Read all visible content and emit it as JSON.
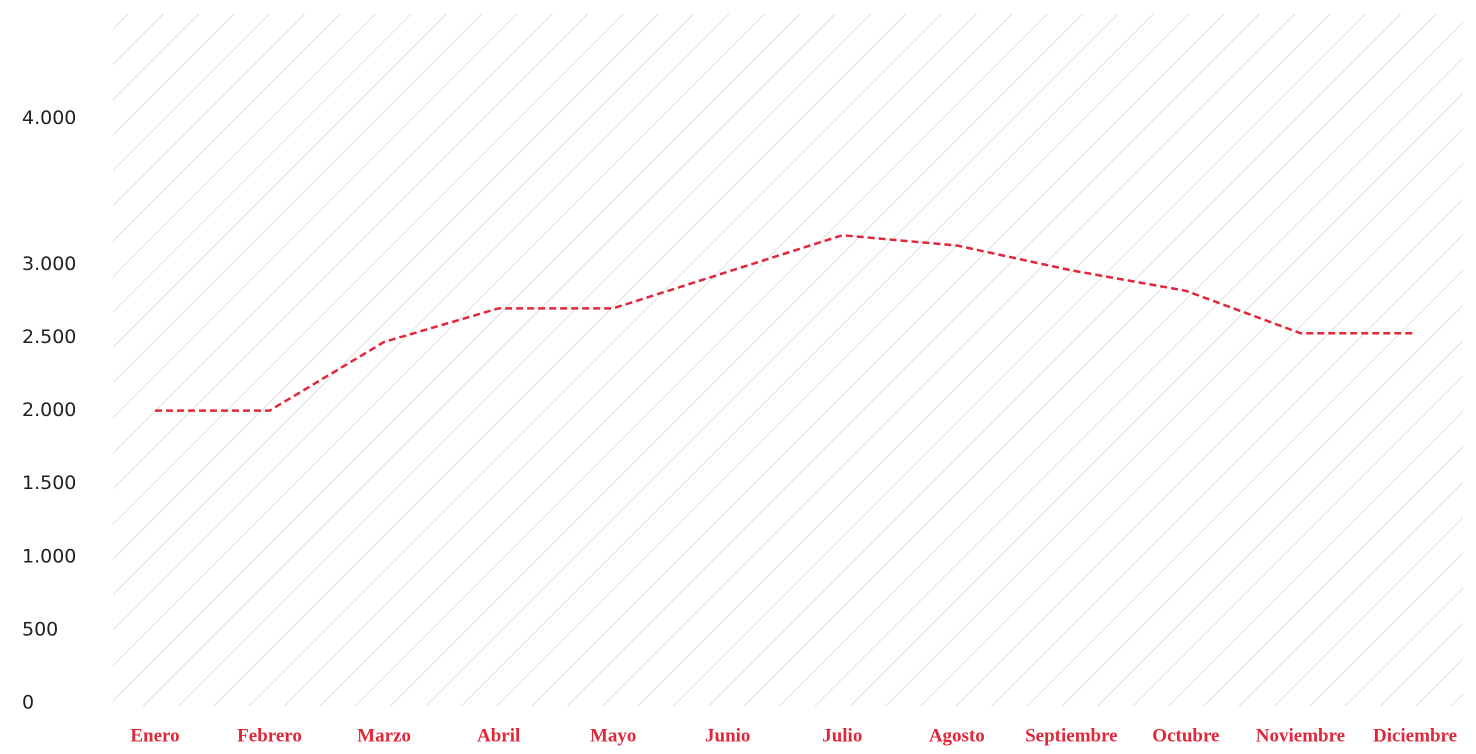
{
  "chart_data": {
    "type": "line",
    "categories": [
      "Enero",
      "Febrero",
      "Marzo",
      "Abril",
      "Mayo",
      "Junio",
      "Julio",
      "Agosto",
      "Septiembre",
      "Octubre",
      "Noviembre",
      "Diciembre"
    ],
    "series": [
      {
        "color": "#e0283a",
        "values": [
          2000,
          2000,
          2470,
          2700,
          2700,
          2950,
          3200,
          3130,
          2960,
          2820,
          2530,
          2530
        ]
      }
    ],
    "ylim": [
      0,
      4700
    ],
    "yticks": [
      0,
      500,
      {
        "value": 1000,
        "label": "1.000"
      },
      {
        "value": 1500,
        "label": "1.500"
      },
      {
        "value": 2000,
        "label": "2.000"
      },
      {
        "value": 2500,
        "label": "2.500"
      },
      {
        "value": 3000,
        "label": "3.000"
      },
      {
        "value": 4000,
        "label": "4.000"
      }
    ],
    "line_style": "dashed"
  }
}
